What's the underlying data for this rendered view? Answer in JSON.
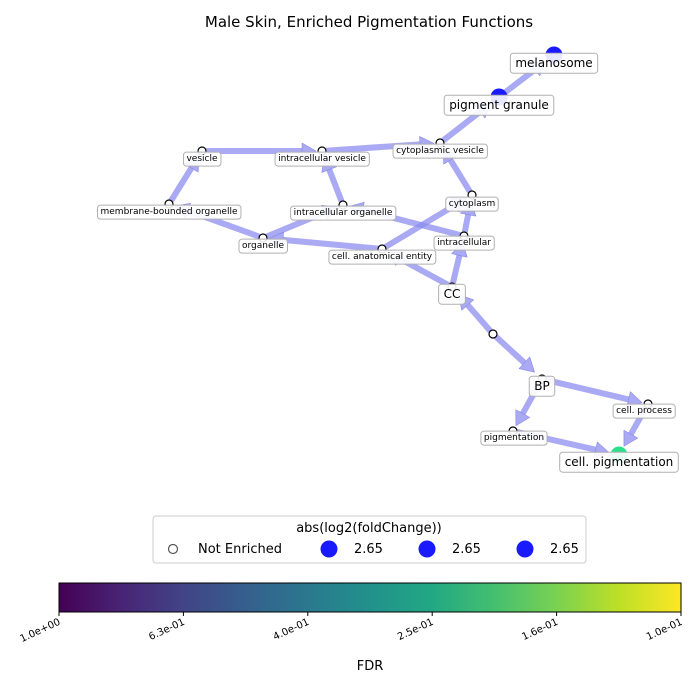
{
  "title": "Male Skin, Enriched Pigmentation Functions",
  "accent_colors": {
    "edge": "#8c8cf0",
    "enriched_blue": "#1a1aff",
    "enriched_green": "#2ce08a"
  },
  "nodes": [
    {
      "id": "melanosome",
      "label": "melanosome",
      "size": "large",
      "enriched": true,
      "fill": "#1a1aff"
    },
    {
      "id": "pigment_granule",
      "label": "pigment granule",
      "size": "large",
      "enriched": true,
      "fill": "#1a1aff"
    },
    {
      "id": "cytoplasmic_vesicle",
      "label": "cytoplasmic vesicle",
      "size": "small",
      "enriched": false
    },
    {
      "id": "vesicle",
      "label": "vesicle",
      "size": "small",
      "enriched": false
    },
    {
      "id": "intracellular_vesicle",
      "label": "intracellular vesicle",
      "size": "small",
      "enriched": false
    },
    {
      "id": "membrane_bounded_organelle",
      "label": "membrane-bounded organelle",
      "size": "small",
      "enriched": false
    },
    {
      "id": "intracellular_organelle",
      "label": "intracellular organelle",
      "size": "small",
      "enriched": false
    },
    {
      "id": "cytoplasm",
      "label": "cytoplasm",
      "size": "small",
      "enriched": false
    },
    {
      "id": "organelle",
      "label": "organelle",
      "size": "small",
      "enriched": false
    },
    {
      "id": "intracellular",
      "label": "intracellular",
      "size": "small",
      "enriched": false
    },
    {
      "id": "cell_anatomical_entity",
      "label": "cell. anatomical entity",
      "size": "small",
      "enriched": false
    },
    {
      "id": "cc",
      "label": "CC",
      "size": "large",
      "enriched": false
    },
    {
      "id": "root",
      "label": "",
      "size": "small",
      "enriched": false
    },
    {
      "id": "bp",
      "label": "BP",
      "size": "large",
      "enriched": false
    },
    {
      "id": "cell_process",
      "label": "cell. process",
      "size": "small",
      "enriched": false
    },
    {
      "id": "pigmentation",
      "label": "pigmentation",
      "size": "small",
      "enriched": false
    },
    {
      "id": "cell_pigmentation",
      "label": "cell. pigmentation",
      "size": "large",
      "enriched": true,
      "fill": "#2ce08a"
    }
  ],
  "edges": [
    [
      "root",
      "cc"
    ],
    [
      "root",
      "bp"
    ],
    [
      "cc",
      "cell_anatomical_entity"
    ],
    [
      "cc",
      "intracellular"
    ],
    [
      "cell_anatomical_entity",
      "organelle"
    ],
    [
      "cell_anatomical_entity",
      "cytoplasm"
    ],
    [
      "intracellular",
      "intracellular_organelle"
    ],
    [
      "intracellular",
      "cytoplasm"
    ],
    [
      "organelle",
      "membrane_bounded_organelle"
    ],
    [
      "organelle",
      "intracellular_organelle"
    ],
    [
      "membrane_bounded_organelle",
      "vesicle"
    ],
    [
      "intracellular_organelle",
      "intracellular_vesicle"
    ],
    [
      "vesicle",
      "intracellular_vesicle"
    ],
    [
      "intracellular_vesicle",
      "cytoplasmic_vesicle"
    ],
    [
      "cytoplasm",
      "cytoplasmic_vesicle"
    ],
    [
      "cytoplasmic_vesicle",
      "pigment_granule"
    ],
    [
      "pigment_granule",
      "melanosome"
    ],
    [
      "bp",
      "cell_process"
    ],
    [
      "bp",
      "pigmentation"
    ],
    [
      "cell_process",
      "cell_pigmentation"
    ],
    [
      "pigmentation",
      "cell_pigmentation"
    ]
  ],
  "legend": {
    "title": "abs(log2(foldChange))",
    "entries": [
      {
        "label": "Not Enriched",
        "kind": "hollow"
      },
      {
        "label": "2.65",
        "kind": "filled",
        "fill": "#1a1aff"
      },
      {
        "label": "2.65",
        "kind": "filled",
        "fill": "#1a1aff"
      },
      {
        "label": "2.65",
        "kind": "filled",
        "fill": "#1a1aff"
      }
    ]
  },
  "colorbar": {
    "label": "FDR",
    "colormap": "viridis",
    "ticks": [
      "1.0e+00",
      "6.3e-01",
      "4.0e-01",
      "2.5e-01",
      "1.6e-01",
      "1.0e-01"
    ]
  }
}
